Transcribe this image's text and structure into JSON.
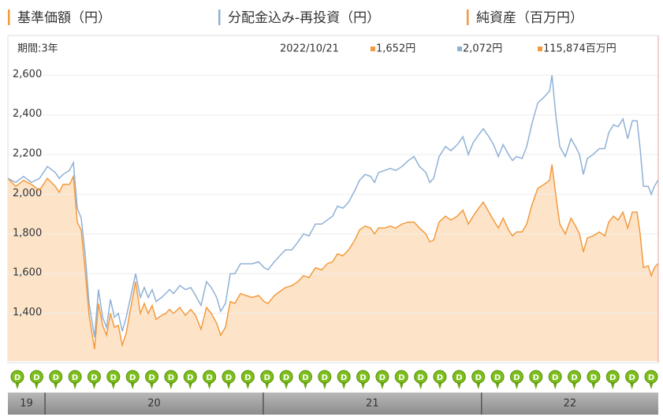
{
  "chart_data": {
    "type": "line",
    "legend": [
      {
        "name": "基準価額（円）",
        "color": "#f39a3c"
      },
      {
        "name": "分配金込み-再投資（円）",
        "color": "#8fb1d6"
      },
      {
        "name": "純資産（百万円）",
        "color": "#f39a3c"
      }
    ],
    "period": "期間:3年",
    "date": "2022/10/21",
    "header_values": [
      {
        "label": "1,652円",
        "color": "#f39a3c"
      },
      {
        "label": "2,072円",
        "color": "#8fb1d6"
      },
      {
        "label": "115,874百万円",
        "color": "#f39a3c"
      }
    ],
    "x": [
      2019.83,
      2019.866,
      2019.902,
      2019.938,
      2019.975,
      2020.011,
      2020.047,
      2020.065,
      2020.083,
      2020.112,
      2020.13,
      2020.148,
      2020.166,
      2020.184,
      2020.202,
      2020.227,
      2020.245,
      2020.264,
      2020.282,
      2020.3,
      2020.318,
      2020.336,
      2020.354,
      2020.372,
      2020.39,
      2020.415,
      2020.437,
      2020.455,
      2020.473,
      2020.491,
      2020.509,
      2020.534,
      2020.553,
      2020.571,
      2020.589,
      2020.618,
      2020.643,
      2020.668,
      2020.69,
      2020.715,
      2020.74,
      2020.762,
      2020.787,
      2020.805,
      2020.827,
      2020.849,
      2020.87,
      2020.896,
      2020.921,
      2020.95,
      2020.979,
      2021.004,
      2021.022,
      2021.051,
      2021.076,
      2021.102,
      2021.131,
      2021.159,
      2021.185,
      2021.21,
      2021.239,
      2021.268,
      2021.293,
      2021.318,
      2021.34,
      2021.365,
      2021.391,
      2021.42,
      2021.441,
      2021.467,
      2021.492,
      2021.51,
      2021.528,
      2021.557,
      2021.582,
      2021.607,
      2021.636,
      2021.665,
      2021.691,
      2021.716,
      2021.745,
      2021.763,
      2021.781,
      2021.806,
      2021.835,
      2021.86,
      2021.889,
      2021.915,
      2021.94,
      2021.962,
      2021.987,
      2022.008,
      2022.034,
      2022.055,
      2022.077,
      2022.099,
      2022.124,
      2022.142,
      2022.16,
      2022.186,
      2022.207,
      2022.232,
      2022.258,
      2022.287,
      2022.312,
      2022.323,
      2022.341,
      2022.359,
      2022.384,
      2022.41,
      2022.431,
      2022.449,
      2022.467,
      2022.485,
      2022.511,
      2022.54,
      2022.565,
      2022.583,
      2022.605,
      2022.626,
      2022.648,
      2022.67,
      2022.691,
      2022.713,
      2022.727,
      2022.742,
      2022.764,
      2022.778,
      2022.792,
      2022.81
    ],
    "series": [
      {
        "name": "基準価額（円）",
        "color": "#f39a3c",
        "fill": "#fde4c9",
        "values": [
          2080,
          2040,
          2070,
          2050,
          2020,
          2080,
          2040,
          2010,
          2050,
          2050,
          2090,
          1860,
          1820,
          1620,
          1390,
          1220,
          1450,
          1340,
          1290,
          1400,
          1330,
          1340,
          1240,
          1300,
          1410,
          1560,
          1400,
          1450,
          1400,
          1440,
          1370,
          1390,
          1400,
          1420,
          1400,
          1430,
          1390,
          1420,
          1390,
          1320,
          1430,
          1400,
          1350,
          1290,
          1330,
          1460,
          1450,
          1500,
          1490,
          1480,
          1490,
          1460,
          1450,
          1490,
          1510,
          1530,
          1540,
          1560,
          1590,
          1580,
          1630,
          1620,
          1650,
          1660,
          1700,
          1690,
          1720,
          1770,
          1820,
          1840,
          1830,
          1800,
          1830,
          1830,
          1840,
          1830,
          1850,
          1860,
          1860,
          1830,
          1800,
          1760,
          1770,
          1860,
          1890,
          1870,
          1890,
          1920,
          1850,
          1890,
          1930,
          1960,
          1910,
          1870,
          1830,
          1880,
          1820,
          1790,
          1810,
          1810,
          1850,
          1950,
          2030,
          2050,
          2070,
          2150,
          1990,
          1850,
          1800,
          1880,
          1840,
          1800,
          1710,
          1780,
          1790,
          1810,
          1790,
          1860,
          1890,
          1870,
          1910,
          1830,
          1910,
          1910,
          1800,
          1630,
          1640,
          1590,
          1630,
          1652
        ]
      },
      {
        "name": "分配金込み-再投資（円）",
        "color": "#8fb1d6",
        "values": [
          2080,
          2060,
          2090,
          2060,
          2080,
          2140,
          2110,
          2080,
          2100,
          2120,
          2160,
          1930,
          1880,
          1700,
          1450,
          1280,
          1520,
          1380,
          1330,
          1470,
          1380,
          1400,
          1310,
          1380,
          1470,
          1600,
          1480,
          1530,
          1480,
          1520,
          1460,
          1480,
          1500,
          1520,
          1500,
          1540,
          1520,
          1530,
          1490,
          1440,
          1560,
          1530,
          1480,
          1410,
          1450,
          1600,
          1600,
          1650,
          1650,
          1650,
          1660,
          1630,
          1620,
          1660,
          1690,
          1720,
          1720,
          1760,
          1800,
          1790,
          1850,
          1850,
          1870,
          1890,
          1940,
          1930,
          1960,
          2020,
          2070,
          2100,
          2090,
          2060,
          2110,
          2120,
          2130,
          2120,
          2140,
          2170,
          2190,
          2140,
          2110,
          2060,
          2080,
          2190,
          2240,
          2220,
          2250,
          2290,
          2200,
          2260,
          2300,
          2330,
          2290,
          2250,
          2190,
          2250,
          2200,
          2170,
          2190,
          2180,
          2240,
          2360,
          2460,
          2490,
          2520,
          2600,
          2390,
          2240,
          2190,
          2280,
          2240,
          2200,
          2100,
          2180,
          2200,
          2230,
          2230,
          2310,
          2350,
          2340,
          2380,
          2280,
          2370,
          2370,
          2230,
          2040,
          2040,
          2000,
          2040,
          2072
        ]
      }
    ],
    "xlim": [
      2019.83,
      2022.81
    ],
    "xticks": [
      {
        "value": 2019,
        "label": "19"
      },
      {
        "value": 2020,
        "label": "20"
      },
      {
        "value": 2021,
        "label": "21"
      },
      {
        "value": 2022,
        "label": "22"
      }
    ],
    "ylim": [
      1160,
      2800
    ],
    "yticks": [
      {
        "value": 1400,
        "label": "1,400"
      },
      {
        "value": 1600,
        "label": "1,600"
      },
      {
        "value": 1800,
        "label": "1,800"
      },
      {
        "value": 2000,
        "label": "2,000"
      },
      {
        "value": 2200,
        "label": "2,200"
      },
      {
        "value": 2400,
        "label": "2,400"
      },
      {
        "value": 2600,
        "label": "2,600"
      }
    ],
    "grid": true,
    "dividend_markers": [
      "D",
      "D",
      "D",
      "D",
      "D",
      "D",
      "D",
      "D",
      "D",
      "D",
      "D",
      "D",
      "D",
      "D",
      "D",
      "D",
      "D",
      "D",
      "D",
      "D",
      "D",
      "D",
      "D",
      "D",
      "D",
      "D",
      "D",
      "D",
      "D",
      "D",
      "D",
      "D",
      "D",
      "D"
    ]
  }
}
